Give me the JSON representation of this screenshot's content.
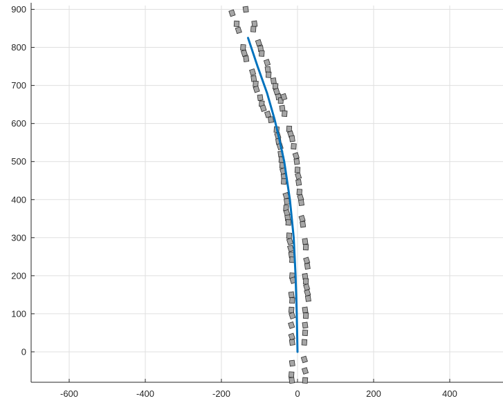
{
  "chart_data": {
    "type": "scatter",
    "title": "",
    "xlabel": "",
    "ylabel": "",
    "xlim": [
      -700,
      540
    ],
    "ylim": [
      -80,
      910
    ],
    "grid": true,
    "x_ticks": [
      -600,
      -400,
      -200,
      0,
      200,
      400
    ],
    "y_ticks": [
      0,
      100,
      200,
      300,
      400,
      500,
      600,
      700,
      800,
      900
    ],
    "colors": {
      "path": "#0072bd",
      "boxes": "#a6a6a6",
      "box_edge": "#2b2b2b",
      "grid": "#dfdfdf"
    },
    "path": {
      "x": [
        0,
        -2,
        -5,
        -10,
        -20,
        -35,
        -48,
        -60,
        -80,
        -105,
        -130
      ],
      "y": [
        0,
        100,
        200,
        300,
        400,
        500,
        560,
        610,
        680,
        750,
        825
      ]
    },
    "boxes": [
      {
        "x": -172,
        "y": 890
      },
      {
        "x": -136,
        "y": 900
      },
      {
        "x": -160,
        "y": 862
      },
      {
        "x": -155,
        "y": 845
      },
      {
        "x": -113,
        "y": 862
      },
      {
        "x": -116,
        "y": 848
      },
      {
        "x": -102,
        "y": 812
      },
      {
        "x": -97,
        "y": 797
      },
      {
        "x": -94,
        "y": 784
      },
      {
        "x": -140,
        "y": 785
      },
      {
        "x": -135,
        "y": 770
      },
      {
        "x": -143,
        "y": 800
      },
      {
        "x": -80,
        "y": 760
      },
      {
        "x": -78,
        "y": 742
      },
      {
        "x": -76,
        "y": 728
      },
      {
        "x": -118,
        "y": 735
      },
      {
        "x": -115,
        "y": 718
      },
      {
        "x": -110,
        "y": 704
      },
      {
        "x": -108,
        "y": 690
      },
      {
        "x": -63,
        "y": 712
      },
      {
        "x": -58,
        "y": 698
      },
      {
        "x": -55,
        "y": 684
      },
      {
        "x": -50,
        "y": 670
      },
      {
        "x": -44,
        "y": 660
      },
      {
        "x": -36,
        "y": 670
      },
      {
        "x": -98,
        "y": 668
      },
      {
        "x": -94,
        "y": 652
      },
      {
        "x": -90,
        "y": 640
      },
      {
        "x": -40,
        "y": 640
      },
      {
        "x": -34,
        "y": 626
      },
      {
        "x": -78,
        "y": 624
      },
      {
        "x": -70,
        "y": 610
      },
      {
        "x": -22,
        "y": 586
      },
      {
        "x": -18,
        "y": 572
      },
      {
        "x": -14,
        "y": 560
      },
      {
        "x": -55,
        "y": 584
      },
      {
        "x": -52,
        "y": 568
      },
      {
        "x": -50,
        "y": 553
      },
      {
        "x": -10,
        "y": 540
      },
      {
        "x": -46,
        "y": 540
      },
      {
        "x": -44,
        "y": 520
      },
      {
        "x": -42,
        "y": 505
      },
      {
        "x": -4,
        "y": 515
      },
      {
        "x": -2,
        "y": 500
      },
      {
        "x": -40,
        "y": 490
      },
      {
        "x": -38,
        "y": 475
      },
      {
        "x": -36,
        "y": 460
      },
      {
        "x": 0,
        "y": 478
      },
      {
        "x": 2,
        "y": 462
      },
      {
        "x": 3,
        "y": 445
      },
      {
        "x": -36,
        "y": 448
      },
      {
        "x": -30,
        "y": 410
      },
      {
        "x": -28,
        "y": 395
      },
      {
        "x": 5,
        "y": 420
      },
      {
        "x": 8,
        "y": 405
      },
      {
        "x": 10,
        "y": 392
      },
      {
        "x": -30,
        "y": 378
      },
      {
        "x": -28,
        "y": 365
      },
      {
        "x": -26,
        "y": 352
      },
      {
        "x": -24,
        "y": 340
      },
      {
        "x": 12,
        "y": 350
      },
      {
        "x": 14,
        "y": 335
      },
      {
        "x": -22,
        "y": 305
      },
      {
        "x": -20,
        "y": 290
      },
      {
        "x": 20,
        "y": 290
      },
      {
        "x": 22,
        "y": 275
      },
      {
        "x": -18,
        "y": 272
      },
      {
        "x": -16,
        "y": 255
      },
      {
        "x": -14,
        "y": 242
      },
      {
        "x": 24,
        "y": 240
      },
      {
        "x": 26,
        "y": 225
      },
      {
        "x": -14,
        "y": 200
      },
      {
        "x": -12,
        "y": 188
      },
      {
        "x": 20,
        "y": 198
      },
      {
        "x": 22,
        "y": 185
      },
      {
        "x": 24,
        "y": 170
      },
      {
        "x": -16,
        "y": 150
      },
      {
        "x": -14,
        "y": 135
      },
      {
        "x": 26,
        "y": 155
      },
      {
        "x": 28,
        "y": 140
      },
      {
        "x": -16,
        "y": 110
      },
      {
        "x": -14,
        "y": 95
      },
      {
        "x": 20,
        "y": 110
      },
      {
        "x": 22,
        "y": 95
      },
      {
        "x": -16,
        "y": 70
      },
      {
        "x": 20,
        "y": 70
      },
      {
        "x": 20,
        "y": 50
      },
      {
        "x": -15,
        "y": 40
      },
      {
        "x": -14,
        "y": 25
      },
      {
        "x": 18,
        "y": 25
      },
      {
        "x": 18,
        "y": -20
      },
      {
        "x": -14,
        "y": -30
      },
      {
        "x": -16,
        "y": -60
      },
      {
        "x": 20,
        "y": -50
      },
      {
        "x": -15,
        "y": -75
      },
      {
        "x": 20,
        "y": -75
      }
    ]
  }
}
